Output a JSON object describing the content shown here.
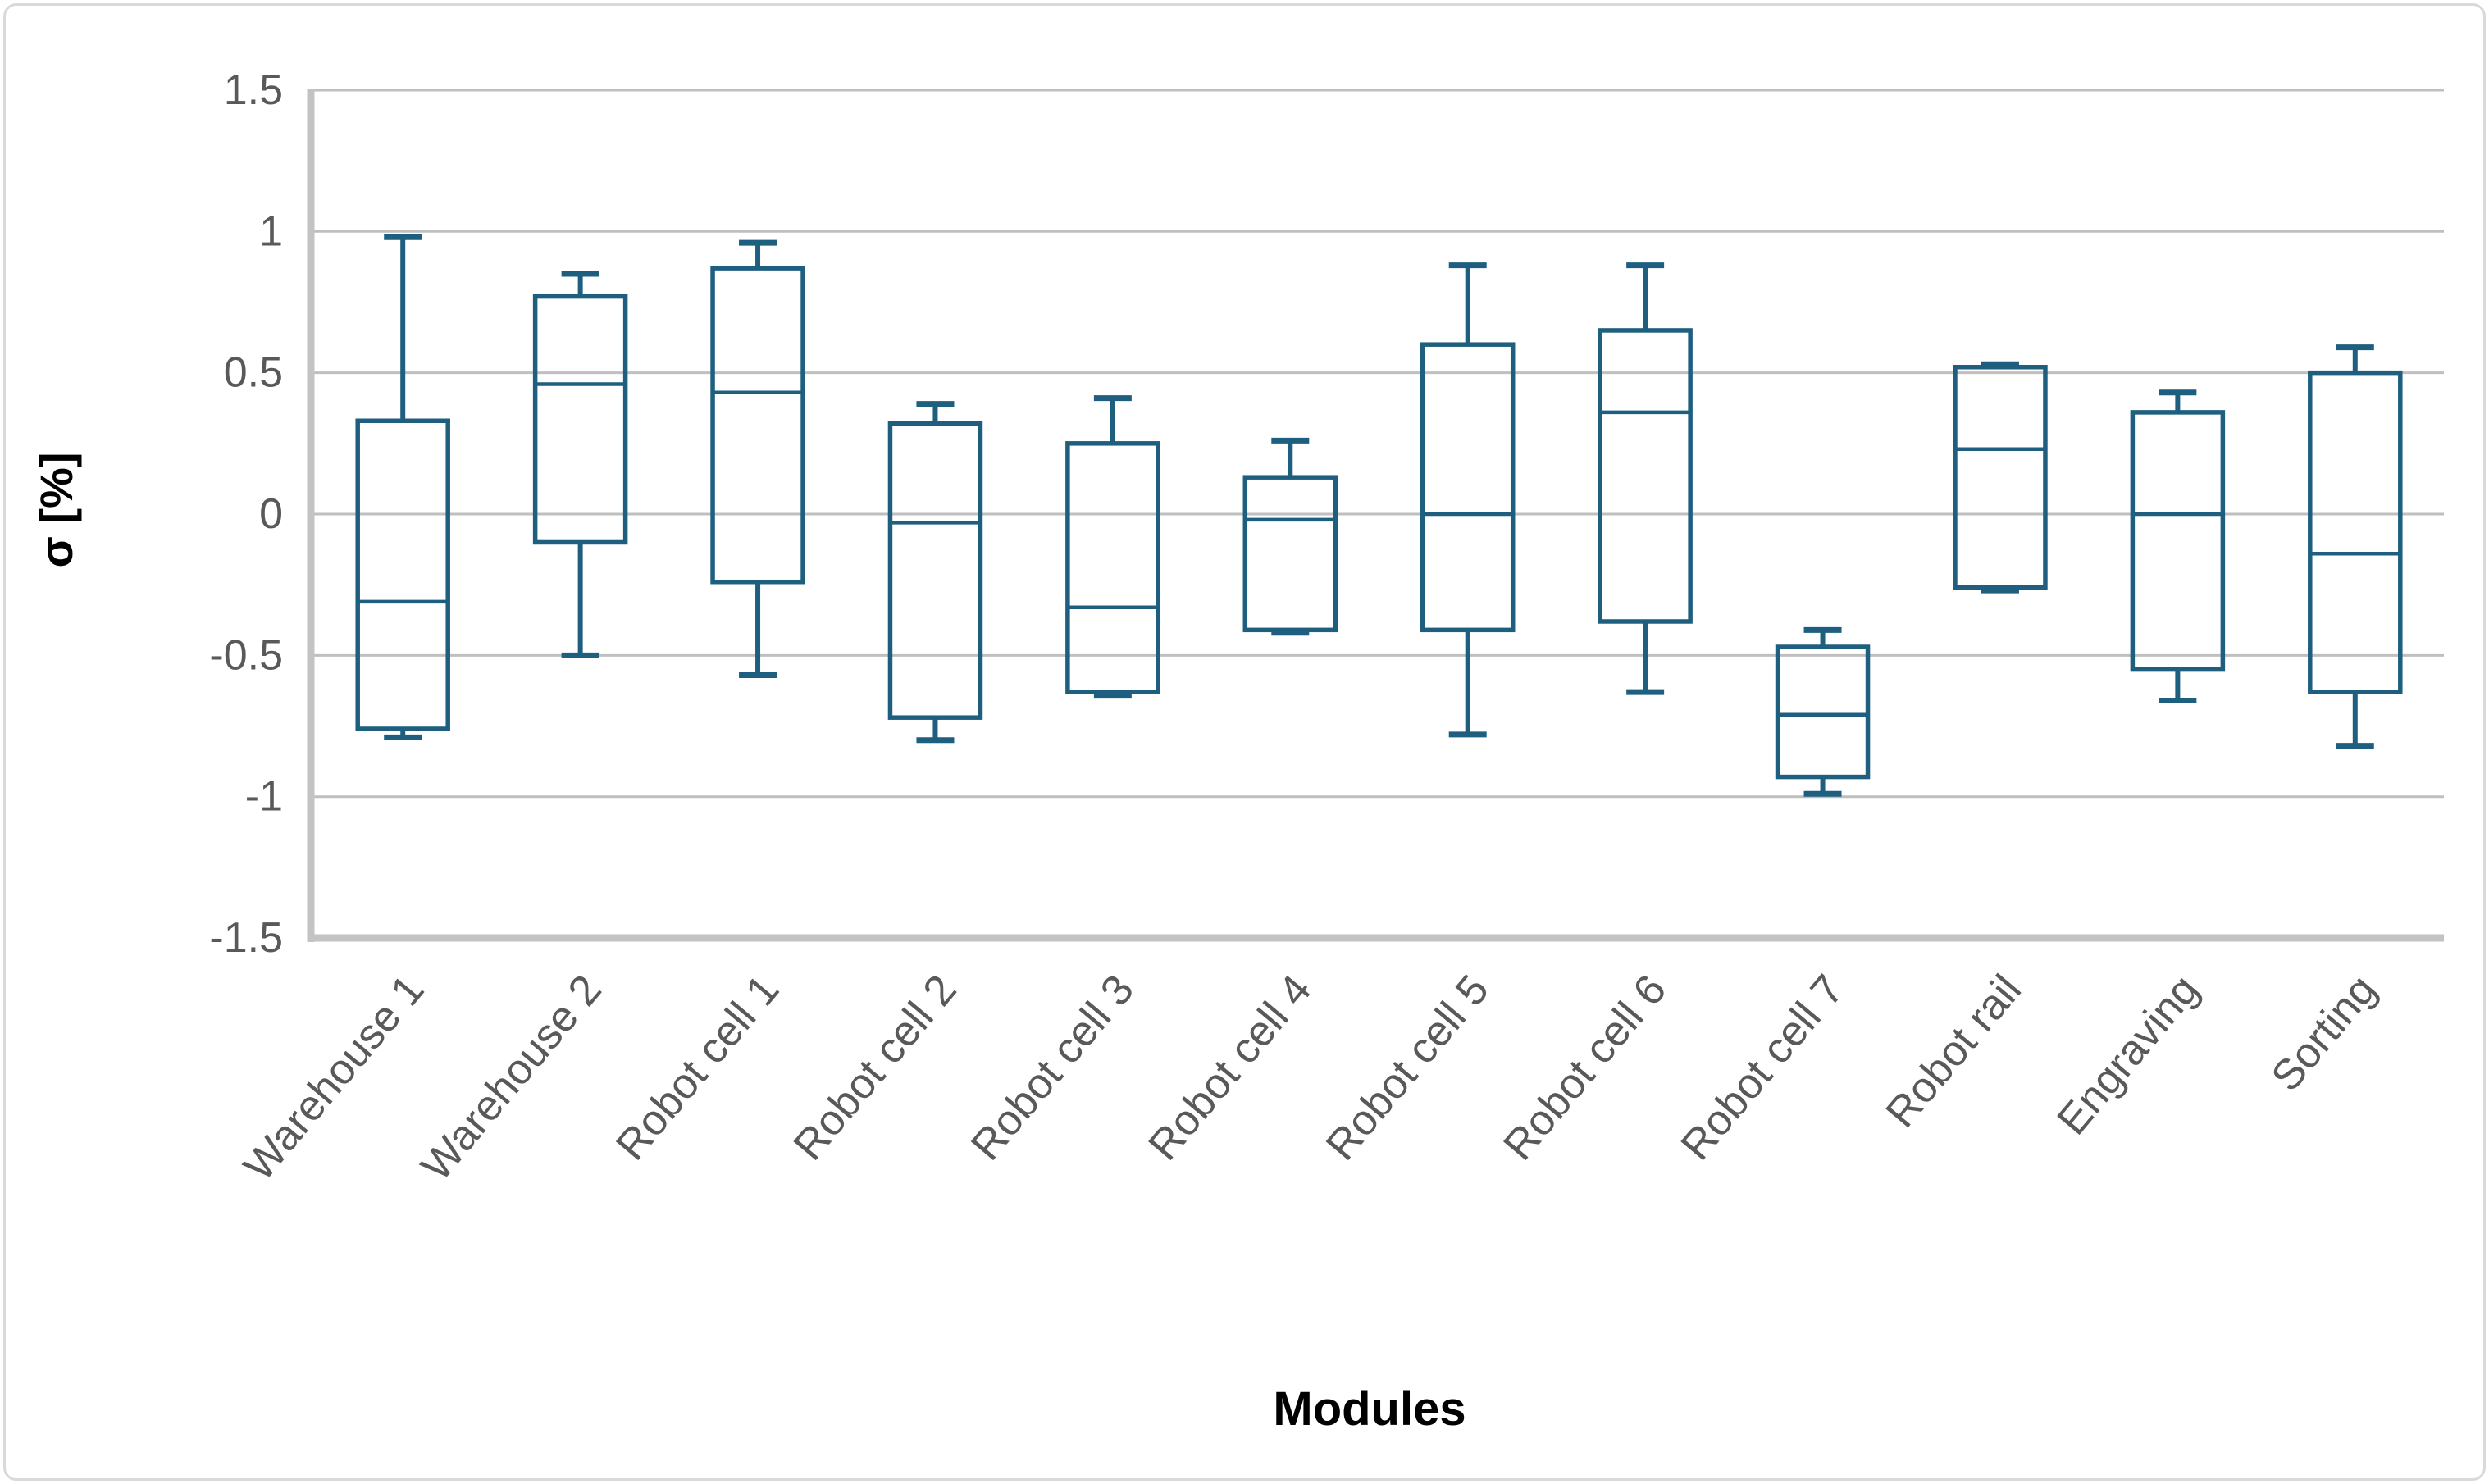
{
  "figure": {
    "background_color": "#ffffff",
    "border_color": "#d9d9d9"
  },
  "chart_data": {
    "type": "box",
    "title": "",
    "xlabel": "Modules",
    "ylabel": "σ [%]",
    "ylim": [
      -1.5,
      1.5
    ],
    "ytick_interval": 0.5,
    "yticks": [
      "1.5",
      "1",
      "0.5",
      "0",
      "-0.5",
      "-1",
      "-1.5"
    ],
    "grid": true,
    "legend": "none",
    "categories": [
      "Warehouse 1",
      "Warehouse 2",
      "Robot cell 1",
      "Robot cell 2",
      "Robot cell 3",
      "Robot cell 4",
      "Robot cell 5",
      "Robot cell 6",
      "Robot cell 7",
      "Robot rail",
      "Engraving",
      "Sorting"
    ],
    "boxes": [
      {
        "label": "Warehouse 1",
        "whisker_low": -0.79,
        "q1": -0.76,
        "median": -0.31,
        "q3": 0.33,
        "whisker_high": 0.98
      },
      {
        "label": "Warehouse 2",
        "whisker_low": -0.5,
        "q1": -0.1,
        "median": 0.46,
        "q3": 0.77,
        "whisker_high": 0.85
      },
      {
        "label": "Robot cell 1",
        "whisker_low": -0.57,
        "q1": -0.24,
        "median": 0.43,
        "q3": 0.87,
        "whisker_high": 0.96
      },
      {
        "label": "Robot cell 2",
        "whisker_low": -0.8,
        "q1": -0.72,
        "median": -0.03,
        "q3": 0.32,
        "whisker_high": 0.39
      },
      {
        "label": "Robot cell 3",
        "whisker_low": -0.64,
        "q1": -0.63,
        "median": -0.33,
        "q3": 0.25,
        "whisker_high": 0.41
      },
      {
        "label": "Robot cell 4",
        "whisker_low": -0.42,
        "q1": -0.41,
        "median": -0.02,
        "q3": 0.13,
        "whisker_high": 0.26
      },
      {
        "label": "Robot cell 5",
        "whisker_low": -0.78,
        "q1": -0.41,
        "median": 0.0,
        "q3": 0.6,
        "whisker_high": 0.88
      },
      {
        "label": "Robot cell 6",
        "whisker_low": -0.63,
        "q1": -0.38,
        "median": 0.36,
        "q3": 0.65,
        "whisker_high": 0.88
      },
      {
        "label": "Robot cell 7",
        "whisker_low": -0.99,
        "q1": -0.93,
        "median": -0.71,
        "q3": -0.47,
        "whisker_high": -0.41
      },
      {
        "label": "Robot rail",
        "whisker_low": -0.27,
        "q1": -0.26,
        "median": 0.23,
        "q3": 0.52,
        "whisker_high": 0.53
      },
      {
        "label": "Engraving",
        "whisker_low": -0.66,
        "q1": -0.55,
        "median": 0.0,
        "q3": 0.36,
        "whisker_high": 0.43
      },
      {
        "label": "Sorting",
        "whisker_low": -0.82,
        "q1": -0.63,
        "median": -0.14,
        "q3": 0.5,
        "whisker_high": 0.59
      }
    ],
    "colors": {
      "box_stroke": "#1e5f80",
      "gridline": "#bfbfbf",
      "axis_line": "#c3c3c3",
      "tick_label": "#595959",
      "axis_title": "#000000"
    }
  }
}
